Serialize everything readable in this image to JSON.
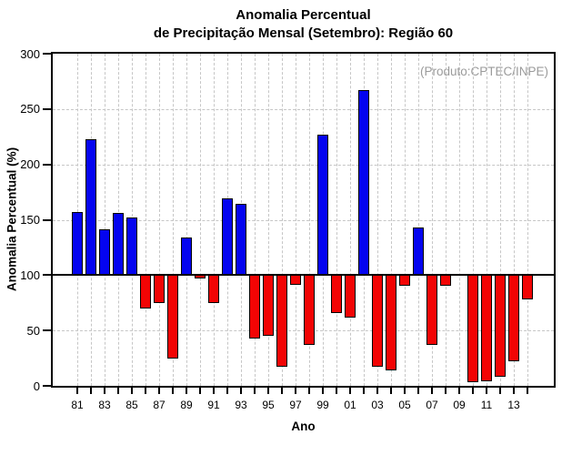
{
  "title": {
    "line1": "Anomalia Percentual",
    "line2": "de Precipitação Mensal (Setembro): Região 60"
  },
  "watermark": "(Produto:CPTEC/INPE)",
  "chart_data": {
    "type": "bar",
    "title": "Anomalia Percentual de Precipitação Mensal (Setembro): Região 60",
    "xlabel": "Ano",
    "ylabel": "Anomalia Percentual (%)",
    "ylim": [
      0,
      300
    ],
    "y_ticks": [
      0,
      50,
      100,
      150,
      200,
      250,
      300
    ],
    "baseline": 100,
    "grid_dashed_y": [
      50,
      150,
      200,
      250
    ],
    "grid_vertical_every_category": true,
    "legend": null,
    "categories": [
      "81",
      "82",
      "83",
      "84",
      "85",
      "86",
      "87",
      "88",
      "89",
      "90",
      "91",
      "92",
      "93",
      "94",
      "95",
      "96",
      "97",
      "98",
      "99",
      "00",
      "01",
      "02",
      "03",
      "04",
      "05",
      "06",
      "07",
      "08",
      "09",
      "10",
      "11",
      "12",
      "13",
      "14"
    ],
    "labeled_categories": [
      "81",
      "83",
      "85",
      "87",
      "89",
      "91",
      "93",
      "95",
      "97",
      "99",
      "01",
      "03",
      "05",
      "07",
      "09",
      "11",
      "13"
    ],
    "values": [
      157,
      223,
      141,
      156,
      152,
      70,
      75,
      25,
      134,
      97,
      75,
      169,
      164,
      43,
      45,
      17,
      91,
      37,
      227,
      66,
      62,
      267,
      17,
      14,
      90,
      143,
      37,
      90,
      101,
      3,
      4,
      8,
      22,
      78
    ],
    "colors": {
      "above_baseline": "#0404f0",
      "below_baseline": "#f20404",
      "outline": "#000000",
      "grid": "#c6c6c6",
      "watermark_text": "#9b9b9b"
    }
  }
}
